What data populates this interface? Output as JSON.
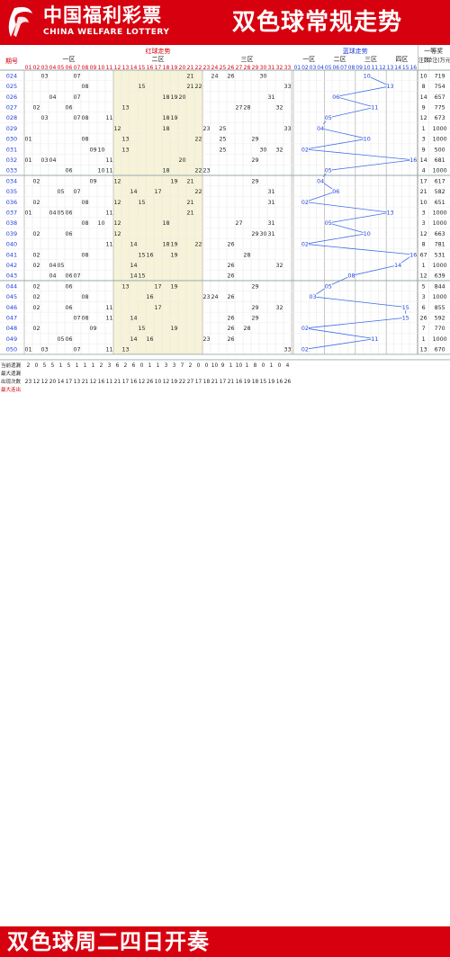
{
  "header": {
    "logo_cn": "中国福利彩票",
    "logo_en": "CHINA WELFARE LOTTERY",
    "title": "双色球常规走势"
  },
  "footer": {
    "title": "双色球周二四日开奏"
  },
  "colors": {
    "brand_red": "#d7000f",
    "red_number": "#d7000f",
    "black_number": "#222222",
    "blue_number": "#1f3fd8",
    "blue_trend_line": "#3f6fe8",
    "zone2_band": "#f7f3d8",
    "stat_highlight": "#d7000f"
  },
  "chart_data": {
    "type": "table",
    "title": "双色球常规走势",
    "columns": {
      "issue_header": "期号",
      "red_header": "红球走势",
      "blue_header": "蓝球走势",
      "prize_header": "一等奖",
      "count_header": "注数",
      "amount_header": "单注(万元)",
      "red_zones": [
        "一区",
        "二区",
        "三区"
      ],
      "blue_zones": [
        "一区",
        "二区",
        "三区",
        "四区"
      ],
      "red_numbers": [
        "01",
        "02",
        "03",
        "04",
        "05",
        "06",
        "07",
        "08",
        "09",
        "10",
        "11",
        "12",
        "13",
        "14",
        "15",
        "16",
        "17",
        "18",
        "19",
        "20",
        "21",
        "22",
        "23",
        "24",
        "25",
        "26",
        "27",
        "28",
        "29",
        "30",
        "31",
        "32",
        "33"
      ],
      "blue_numbers": [
        "01",
        "02",
        "03",
        "04",
        "05",
        "06",
        "07",
        "08",
        "09",
        "10",
        "11",
        "12",
        "13",
        "14",
        "15",
        "16"
      ]
    },
    "draws": [
      {
        "issue": "024",
        "reds": [
          3,
          7,
          21,
          24,
          26,
          30
        ],
        "blue": 10,
        "count": 10,
        "amount": 719
      },
      {
        "issue": "025",
        "reds": [
          8,
          15,
          21,
          22,
          33
        ],
        "blue": 13,
        "count": 8,
        "amount": 754
      },
      {
        "issue": "026",
        "reds": [
          4,
          7,
          18,
          19,
          20,
          31
        ],
        "blue": 6,
        "count": 14,
        "amount": 657
      },
      {
        "issue": "027",
        "reds": [
          2,
          6,
          13,
          27,
          28,
          32
        ],
        "blue": 11,
        "count": 9,
        "amount": 775
      },
      {
        "issue": "028",
        "reds": [
          3,
          7,
          8,
          11,
          18,
          19
        ],
        "blue": 5,
        "count": 12,
        "amount": 673
      },
      {
        "issue": "029",
        "reds": [
          12,
          18,
          23,
          25,
          33
        ],
        "blue": 4,
        "count": 1,
        "amount": 1000
      },
      {
        "issue": "030",
        "reds": [
          1,
          8,
          13,
          22,
          25,
          29
        ],
        "blue": 10,
        "count": 3,
        "amount": 1000
      },
      {
        "issue": "031",
        "reds": [
          9,
          10,
          13,
          25,
          30,
          32
        ],
        "blue": 2,
        "count": 9,
        "amount": 500
      },
      {
        "issue": "032",
        "reds": [
          1,
          3,
          4,
          11,
          20,
          29
        ],
        "blue": 16,
        "count": 14,
        "amount": 681
      },
      {
        "issue": "033",
        "reds": [
          6,
          10,
          11,
          18,
          22,
          23
        ],
        "blue": 5,
        "count": 4,
        "amount": 1000
      },
      {
        "issue": "034",
        "reds": [
          2,
          9,
          12,
          19,
          21,
          29
        ],
        "blue": 4,
        "count": 17,
        "amount": 617
      },
      {
        "issue": "035",
        "reds": [
          5,
          7,
          14,
          17,
          22,
          31
        ],
        "blue": 6,
        "count": 21,
        "amount": 582
      },
      {
        "issue": "036",
        "reds": [
          2,
          8,
          12,
          15,
          21,
          31
        ],
        "blue": 2,
        "count": 10,
        "amount": 651
      },
      {
        "issue": "037",
        "reds": [
          1,
          4,
          5,
          6,
          11,
          21
        ],
        "blue": 13,
        "count": 3,
        "amount": 1000
      },
      {
        "issue": "038",
        "reds": [
          8,
          10,
          12,
          18,
          27,
          31
        ],
        "blue": 5,
        "count": 3,
        "amount": 1000
      },
      {
        "issue": "039",
        "reds": [
          2,
          6,
          12,
          29,
          30,
          31
        ],
        "blue": 10,
        "count": 12,
        "amount": 663
      },
      {
        "issue": "040",
        "reds": [
          11,
          14,
          18,
          19,
          22,
          26
        ],
        "blue": 2,
        "count": 8,
        "amount": 781
      },
      {
        "issue": "041",
        "reds": [
          2,
          8,
          15,
          16,
          19,
          28
        ],
        "blue": 16,
        "count": 67,
        "amount": 531
      },
      {
        "issue": "042",
        "reds": [
          2,
          4,
          5,
          14,
          26,
          32
        ],
        "blue": 14,
        "count": 1,
        "amount": 1000
      },
      {
        "issue": "043",
        "reds": [
          4,
          6,
          7,
          14,
          15,
          26
        ],
        "blue": 8,
        "count": 12,
        "amount": 639
      },
      {
        "issue": "044",
        "reds": [
          2,
          6,
          13,
          17,
          19,
          29
        ],
        "blue": 5,
        "count": 5,
        "amount": 844
      },
      {
        "issue": "045",
        "reds": [
          2,
          8,
          16,
          23,
          24,
          26
        ],
        "blue": 3,
        "count": 3,
        "amount": 1000
      },
      {
        "issue": "046",
        "reds": [
          2,
          6,
          11,
          17,
          29,
          32
        ],
        "blue": 15,
        "count": 6,
        "amount": 855
      },
      {
        "issue": "047",
        "reds": [
          7,
          8,
          11,
          14,
          26,
          29
        ],
        "blue": 15,
        "count": 26,
        "amount": 592
      },
      {
        "issue": "048",
        "reds": [
          2,
          9,
          15,
          19,
          26,
          28
        ],
        "blue": 2,
        "count": 7,
        "amount": 770
      },
      {
        "issue": "049",
        "reds": [
          5,
          6,
          14,
          16,
          23,
          26
        ],
        "blue": 11,
        "count": 1,
        "amount": 1000
      },
      {
        "issue": "050",
        "reds": [
          1,
          3,
          7,
          11,
          13,
          33
        ],
        "blue": 2,
        "count": 13,
        "amount": 670
      }
    ],
    "blue_trend_series": [
      10,
      13,
      6,
      11,
      5,
      4,
      10,
      2,
      16,
      5,
      4,
      6,
      2,
      13,
      5,
      10,
      2,
      16,
      14,
      8,
      5,
      3,
      15,
      15,
      2,
      11,
      2
    ],
    "stats_rows": [
      "当前遗漏",
      "最大遗漏",
      "出现次数",
      "最大连出"
    ],
    "stats_sample": {
      "当前遗漏": [
        2,
        0,
        5,
        5,
        1,
        5,
        1,
        1,
        1,
        2,
        3,
        6,
        2,
        6,
        0,
        1,
        1,
        3,
        3,
        7,
        2,
        0,
        0,
        10,
        9,
        1,
        10,
        1,
        8,
        0,
        1,
        0,
        4,
        4,
        0
      ],
      "出现次数": [
        23,
        12,
        12,
        20,
        14,
        17,
        13,
        21,
        12,
        16,
        11,
        21,
        17,
        16,
        12,
        26,
        10,
        12,
        19,
        22,
        27,
        17,
        18,
        21,
        17,
        21,
        16,
        19,
        18,
        15,
        19,
        16,
        26
      ]
    }
  }
}
